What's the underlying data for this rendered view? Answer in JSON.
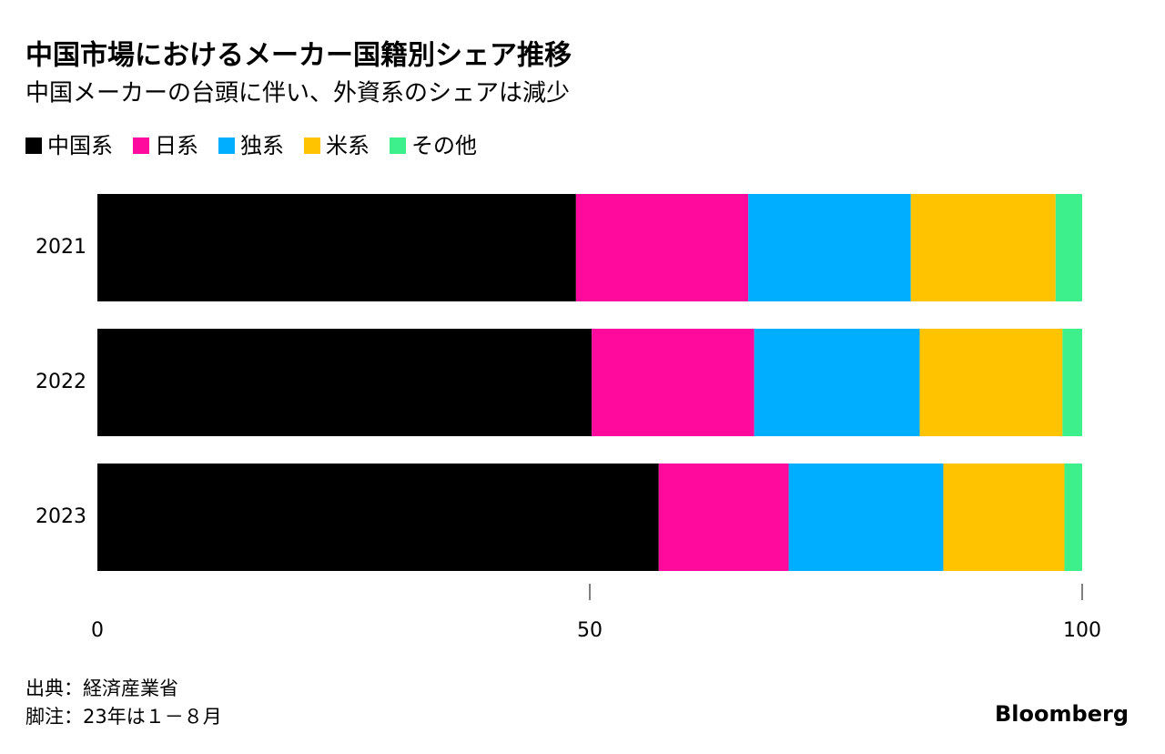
{
  "chart_data": {
    "type": "bar",
    "orientation": "horizontal",
    "stacked": true,
    "title": "中国市場におけるメーカー国籍別シェア推移",
    "subtitle": "中国メーカーの台頭に伴い、外資系のシェアは減少",
    "categories": [
      "2021",
      "2022",
      "2023"
    ],
    "series": [
      {
        "name": "中国系",
        "color": "#000000",
        "values": [
          48.6,
          50.2,
          57.0
        ]
      },
      {
        "name": "日系",
        "color": "#ff0a9c",
        "values": [
          17.5,
          16.5,
          13.2
        ]
      },
      {
        "name": "独系",
        "color": "#00aeff",
        "values": [
          16.5,
          16.8,
          15.7
        ]
      },
      {
        "name": "米系",
        "color": "#ffc300",
        "values": [
          14.7,
          14.5,
          12.3
        ]
      },
      {
        "name": "その他",
        "color": "#3ef08c",
        "values": [
          2.7,
          2.0,
          1.8
        ]
      }
    ],
    "xlim": [
      0,
      100
    ],
    "xticks": [
      0,
      50,
      100
    ],
    "grid": false,
    "legend": "top-left",
    "source": "出典：経済産業省",
    "note": "脚注：23年は１－８月",
    "brand": "Bloomberg"
  }
}
